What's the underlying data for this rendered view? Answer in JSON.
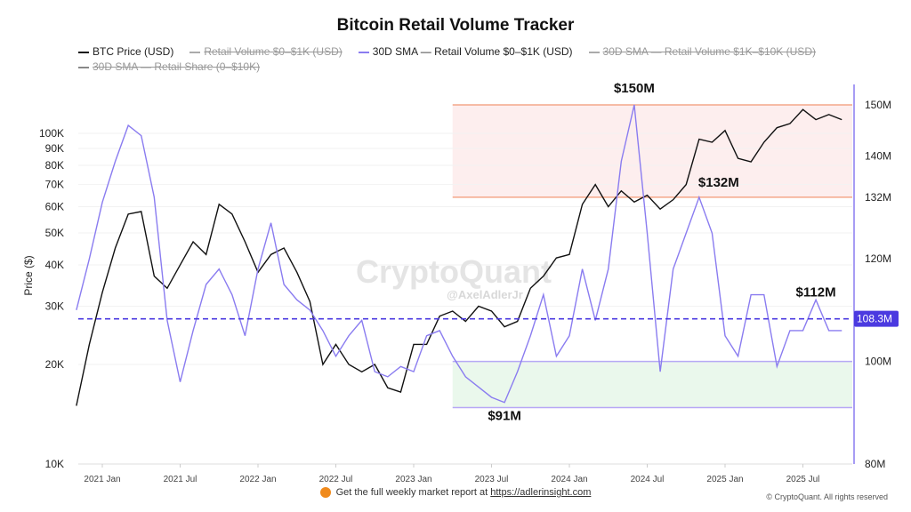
{
  "title": "Bitcoin Retail Volume Tracker",
  "legend": [
    {
      "label": "BTC Price (USD)",
      "color": "#111111",
      "hidden": false
    },
    {
      "label": "Retail Volume $0–$1K (USD)",
      "color": "#aaaaaa",
      "hidden": true
    },
    {
      "label": "30D SMA — Retail Volume $0–$1K (USD)",
      "color": "#8a7cf0",
      "hidden": false
    },
    {
      "label": "30D SMA — Retail Volume $1K–$10K (USD)",
      "color": "#aaaaaa",
      "hidden": true
    },
    {
      "label": "30D SMA — Retail Share (0–$10K)",
      "color": "#888888",
      "hidden": true
    }
  ],
  "watermark": {
    "brand": "CryptoQuant",
    "handle": "@AxelAdlerJr"
  },
  "footer": {
    "text": "Get the full weekly market report at ",
    "link": "https://adlerinsight.com",
    "copyright": "© CryptoQuant. All rights reserved"
  },
  "colors": {
    "btc": "#111111",
    "sma": "#8a7cf0",
    "dashed": "#4b3ae0",
    "pink_band": "#fdeeee",
    "pink_line": "#f4a78a",
    "green_band": "#eaf8ec",
    "green_line": "#b7a8f5"
  },
  "chart_data": {
    "type": "line",
    "title": "Bitcoin Retail Volume Tracker",
    "ylabel_left": "Price ($)",
    "left_axis": {
      "scale": "log",
      "range": [
        10000,
        150000
      ],
      "ticks": [
        {
          "v": 10000,
          "l": "10K"
        },
        {
          "v": 20000,
          "l": "20K"
        },
        {
          "v": 30000,
          "l": "30K"
        },
        {
          "v": 40000,
          "l": "40K"
        },
        {
          "v": 50000,
          "l": "50K"
        },
        {
          "v": 60000,
          "l": "60K"
        },
        {
          "v": 70000,
          "l": "70K"
        },
        {
          "v": 80000,
          "l": "80K"
        },
        {
          "v": 90000,
          "l": "90K"
        },
        {
          "v": 100000,
          "l": "100K"
        }
      ]
    },
    "right_axis": {
      "scale": "linear",
      "range": [
        80,
        150
      ],
      "ticks": [
        {
          "v": 80,
          "l": "80M"
        },
        {
          "v": 100,
          "l": "100M"
        },
        {
          "v": 120,
          "l": "120M"
        },
        {
          "v": 132,
          "l": "132M"
        },
        {
          "v": 140,
          "l": "140M"
        },
        {
          "v": 150,
          "l": "150M"
        }
      ]
    },
    "x_ticks": [
      "2021 Jan",
      "2021 Jul",
      "2022 Jan",
      "2022 Jul",
      "2023 Jan",
      "2023 Jul",
      "2024 Jan",
      "2024 Jul",
      "2025 Jan",
      "2025 Jul"
    ],
    "x_start": "2020-11",
    "series": [
      {
        "name": "BTC Price (USD)",
        "axis": "left",
        "values": [
          15000,
          23000,
          33000,
          45000,
          57000,
          58000,
          37000,
          34000,
          40000,
          47000,
          43000,
          61000,
          57000,
          47000,
          38000,
          43000,
          45000,
          38000,
          31000,
          20000,
          23000,
          20000,
          19000,
          20000,
          17000,
          16500,
          23000,
          23000,
          28000,
          29000,
          27000,
          30000,
          29000,
          26000,
          27000,
          34000,
          37000,
          42000,
          43000,
          61000,
          70000,
          60000,
          67000,
          62000,
          65000,
          59000,
          63000,
          70000,
          96000,
          94000,
          102000,
          84000,
          82000,
          94000,
          104000,
          107000,
          118000,
          110000,
          114000,
          110000
        ]
      },
      {
        "name": "30D SMA — Retail Volume $0–$1K (USD)",
        "axis": "right",
        "unit": "M",
        "values": [
          110,
          120,
          131,
          139,
          146,
          144,
          132,
          108,
          96,
          106,
          115,
          118,
          113,
          105,
          118,
          127,
          115,
          112,
          110,
          106,
          101,
          105,
          108,
          98,
          97,
          99,
          98,
          105,
          106,
          101,
          97,
          95,
          93,
          92,
          98,
          105,
          113,
          101,
          105,
          118,
          108,
          118,
          139,
          150,
          125,
          98,
          118,
          125,
          132,
          125,
          105,
          101,
          113,
          113,
          99,
          106,
          106,
          112,
          106,
          106
        ]
      }
    ],
    "current_value": {
      "value": 108.3,
      "label": "108.3M"
    },
    "bands": [
      {
        "from": 132,
        "to": 150,
        "start": "2023-04"
      },
      {
        "from": 91,
        "to": 100,
        "start": "2023-04"
      }
    ],
    "annotations": [
      {
        "text": "$150M",
        "date": "2024-06"
      },
      {
        "text": "$132M",
        "date": "2024-11"
      },
      {
        "text": "$112M",
        "date": "2025-08"
      },
      {
        "text": "$91M",
        "date": "2023-08"
      }
    ]
  }
}
